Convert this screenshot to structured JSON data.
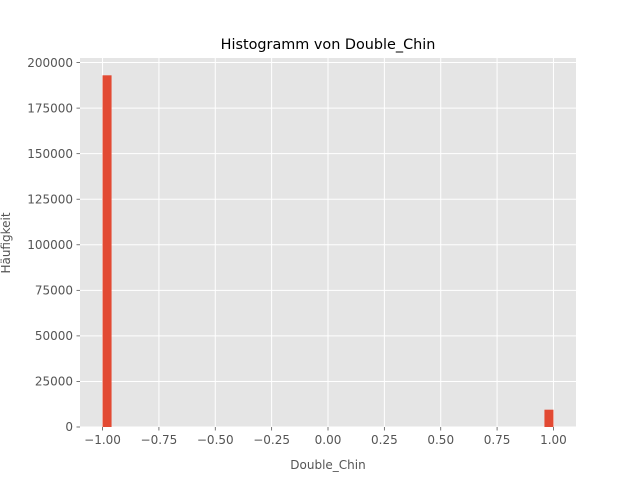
{
  "chart_data": {
    "type": "bar",
    "title": "Histogramm von Double_Chin",
    "xlabel": "Double_Chin",
    "ylabel": "Häufigkeit",
    "xlim": [
      -1.1,
      1.1
    ],
    "ylim": [
      0,
      202500
    ],
    "x_ticks": [
      "−1.00",
      "−0.75",
      "−0.50",
      "−0.25",
      "0.00",
      "0.25",
      "0.50",
      "0.75",
      "1.00"
    ],
    "x_tick_values": [
      -1.0,
      -0.75,
      -0.5,
      -0.25,
      0.0,
      0.25,
      0.5,
      0.75,
      1.0
    ],
    "y_ticks": [
      "0",
      "25000",
      "50000",
      "75000",
      "100000",
      "125000",
      "150000",
      "175000",
      "200000"
    ],
    "y_tick_values": [
      0,
      25000,
      50000,
      75000,
      100000,
      125000,
      150000,
      175000,
      200000
    ],
    "bins": [
      {
        "x0": -1.0,
        "x1": -0.96,
        "value": 193000
      },
      {
        "x0": 0.96,
        "x1": 1.0,
        "value": 9500
      }
    ],
    "grid": true,
    "colors": {
      "bar": "#e24a33",
      "background": "#e5e5e5",
      "grid": "#ffffff",
      "text": "#555555",
      "title": "#000000"
    }
  }
}
